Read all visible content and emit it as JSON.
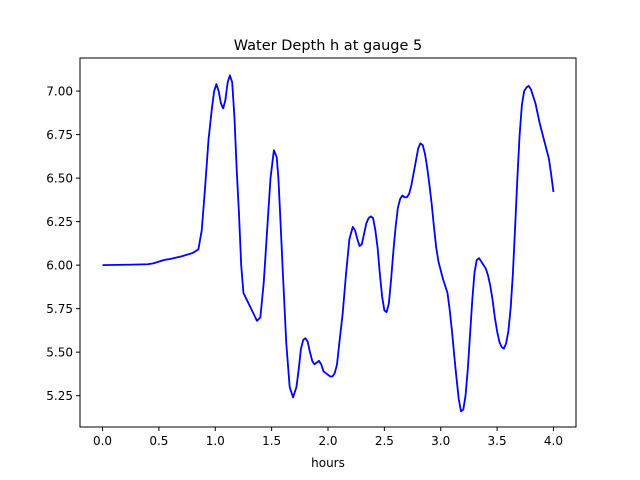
{
  "chart_data": {
    "type": "line",
    "title": "Water Depth h at gauge 5",
    "xlabel": "hours",
    "ylabel": "",
    "xlim": [
      -0.2,
      4.2
    ],
    "ylim": [
      5.07,
      7.19
    ],
    "xticks": [
      0.0,
      0.5,
      1.0,
      1.5,
      2.0,
      2.5,
      3.0,
      3.5,
      4.0
    ],
    "xtick_labels": [
      "0.0",
      "0.5",
      "1.0",
      "1.5",
      "2.0",
      "2.5",
      "3.0",
      "3.5",
      "4.0"
    ],
    "yticks": [
      5.25,
      5.5,
      5.75,
      6.0,
      6.25,
      6.5,
      6.75,
      7.0
    ],
    "ytick_labels": [
      "5.25",
      "5.50",
      "5.75",
      "6.00",
      "6.25",
      "6.50",
      "6.75",
      "7.00"
    ],
    "grid": false,
    "series": [
      {
        "color": "#0000ff",
        "x": [
          0.0,
          0.2,
          0.4,
          0.45,
          0.5,
          0.55,
          0.6,
          0.7,
          0.8,
          0.85,
          0.88,
          0.91,
          0.94,
          0.97,
          0.99,
          1.01,
          1.03,
          1.05,
          1.07,
          1.09,
          1.11,
          1.13,
          1.15,
          1.17,
          1.19,
          1.21,
          1.23,
          1.25,
          1.28,
          1.31,
          1.34,
          1.37,
          1.4,
          1.43,
          1.46,
          1.49,
          1.52,
          1.545,
          1.56,
          1.575,
          1.6,
          1.63,
          1.66,
          1.69,
          1.72,
          1.74,
          1.76,
          1.78,
          1.8,
          1.82,
          1.84,
          1.86,
          1.88,
          1.9,
          1.92,
          1.94,
          1.96,
          1.98,
          2.0,
          2.02,
          2.04,
          2.06,
          2.08,
          2.1,
          2.13,
          2.16,
          2.19,
          2.22,
          2.24,
          2.26,
          2.28,
          2.3,
          2.32,
          2.34,
          2.36,
          2.38,
          2.4,
          2.42,
          2.44,
          2.46,
          2.48,
          2.5,
          2.52,
          2.54,
          2.56,
          2.58,
          2.6,
          2.62,
          2.64,
          2.66,
          2.68,
          2.7,
          2.72,
          2.74,
          2.76,
          2.78,
          2.8,
          2.82,
          2.84,
          2.86,
          2.88,
          2.9,
          2.92,
          2.94,
          2.96,
          2.98,
          3.0,
          3.02,
          3.04,
          3.06,
          3.08,
          3.1,
          3.12,
          3.14,
          3.16,
          3.18,
          3.2,
          3.22,
          3.24,
          3.26,
          3.28,
          3.3,
          3.32,
          3.34,
          3.36,
          3.38,
          3.4,
          3.42,
          3.44,
          3.46,
          3.48,
          3.5,
          3.52,
          3.54,
          3.56,
          3.58,
          3.6,
          3.62,
          3.64,
          3.66,
          3.68,
          3.7,
          3.72,
          3.74,
          3.76,
          3.78,
          3.8,
          3.82,
          3.84,
          3.86,
          3.88,
          3.9,
          3.92,
          3.94,
          3.96,
          3.98,
          4.0
        ],
        "y": [
          6.0,
          6.002,
          6.005,
          6.01,
          6.02,
          6.03,
          6.035,
          6.05,
          6.07,
          6.09,
          6.2,
          6.45,
          6.72,
          6.9,
          7.0,
          7.04,
          7.0,
          6.93,
          6.9,
          6.95,
          7.05,
          7.09,
          7.05,
          6.85,
          6.55,
          6.3,
          6.0,
          5.84,
          5.8,
          5.76,
          5.72,
          5.68,
          5.7,
          5.9,
          6.2,
          6.5,
          6.66,
          6.62,
          6.5,
          6.3,
          5.95,
          5.55,
          5.3,
          5.24,
          5.3,
          5.4,
          5.52,
          5.57,
          5.58,
          5.56,
          5.5,
          5.45,
          5.43,
          5.44,
          5.45,
          5.43,
          5.39,
          5.38,
          5.37,
          5.36,
          5.36,
          5.38,
          5.43,
          5.55,
          5.72,
          5.95,
          6.15,
          6.22,
          6.2,
          6.15,
          6.11,
          6.12,
          6.18,
          6.24,
          6.27,
          6.28,
          6.27,
          6.2,
          6.1,
          5.95,
          5.82,
          5.74,
          5.73,
          5.78,
          5.92,
          6.08,
          6.22,
          6.33,
          6.38,
          6.4,
          6.39,
          6.39,
          6.41,
          6.46,
          6.53,
          6.6,
          6.67,
          6.7,
          6.69,
          6.64,
          6.56,
          6.46,
          6.35,
          6.22,
          6.1,
          6.02,
          5.97,
          5.92,
          5.88,
          5.84,
          5.74,
          5.62,
          5.48,
          5.35,
          5.23,
          5.16,
          5.17,
          5.25,
          5.4,
          5.6,
          5.8,
          5.96,
          6.03,
          6.04,
          6.02,
          6.0,
          5.98,
          5.94,
          5.88,
          5.8,
          5.7,
          5.62,
          5.56,
          5.53,
          5.52,
          5.55,
          5.62,
          5.75,
          5.95,
          6.22,
          6.5,
          6.75,
          6.92,
          7.0,
          7.02,
          7.03,
          7.01,
          6.97,
          6.93,
          6.87,
          6.81,
          6.76,
          6.71,
          6.66,
          6.61,
          6.52,
          6.42
        ]
      }
    ]
  }
}
